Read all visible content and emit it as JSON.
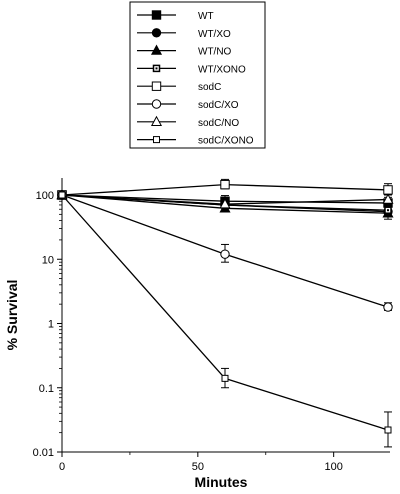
{
  "chart_data": {
    "type": "line",
    "xlabel": "Minutes",
    "ylabel": "% Survival",
    "x_scale": "linear",
    "y_scale": "log",
    "xlim": [
      0,
      120
    ],
    "ylim": [
      0.01,
      100
    ],
    "x_ticks": [
      0,
      50,
      100
    ],
    "x_tick_labels": [
      "0",
      "50",
      "100"
    ],
    "y_ticks": [
      0.01,
      0.1,
      1,
      10,
      100
    ],
    "y_tick_labels": [
      "0.01",
      "0.1",
      "1",
      "10",
      "100"
    ],
    "grid": false,
    "legend_position": "top",
    "colors": {
      "line": "#000000",
      "background": "#ffffff"
    },
    "x": [
      0,
      60,
      120
    ],
    "series": [
      {
        "name": "WT",
        "marker": "filled-square",
        "values": [
          100,
          80,
          75
        ]
      },
      {
        "name": "WT/XO",
        "marker": "filled-circle",
        "values": [
          100,
          70,
          55
        ]
      },
      {
        "name": "WT/NO",
        "marker": "filled-triangle",
        "values": [
          100,
          62,
          52
        ]
      },
      {
        "name": "WT/XONO",
        "marker": "small-square",
        "values": [
          100,
          70,
          58
        ]
      },
      {
        "name": "sodC",
        "marker": "open-square",
        "values": [
          100,
          145,
          120
        ]
      },
      {
        "name": "sodC/XO",
        "marker": "open-circle",
        "values": [
          100,
          12,
          1.8
        ]
      },
      {
        "name": "sodC/NO",
        "marker": "open-triangle",
        "values": [
          100,
          72,
          85
        ]
      },
      {
        "name": "sodC/XONO",
        "marker": "small-open-square",
        "values": [
          100,
          0.14,
          0.022
        ]
      }
    ],
    "error_bars": [
      {
        "series": "WT",
        "low": [
          100,
          65,
          60
        ],
        "high": [
          100,
          98,
          92
        ]
      },
      {
        "series": "WT/XO",
        "low": [
          100,
          58,
          42
        ],
        "high": [
          100,
          85,
          68
        ]
      },
      {
        "series": "sodC",
        "low": [
          100,
          125,
          100
        ],
        "high": [
          100,
          175,
          150
        ]
      },
      {
        "series": "sodC/XO",
        "low": [
          100,
          9,
          1.6
        ],
        "high": [
          100,
          17,
          2.1
        ]
      },
      {
        "series": "sodC/XONO",
        "low": [
          100,
          0.1,
          0.012
        ],
        "high": [
          100,
          0.2,
          0.042
        ]
      }
    ]
  }
}
